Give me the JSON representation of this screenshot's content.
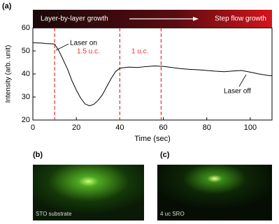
{
  "figure_label": "(a)",
  "chart_data": {
    "type": "line",
    "banner": [
      "Layer-by-layer growth",
      "Step flow growth"
    ],
    "xlabel": "Time (sec)",
    "ylabel": "Intensity (arb. unit)",
    "x": [
      0,
      2,
      4,
      6,
      8,
      10,
      12,
      14,
      16,
      18,
      20,
      22,
      24,
      26,
      28,
      30,
      32,
      34,
      36,
      38,
      40,
      44,
      48,
      52,
      56,
      60,
      64,
      68,
      72,
      76,
      80,
      84,
      88,
      92,
      96,
      100,
      104,
      108,
      110
    ],
    "series": [
      {
        "color": "#000000",
        "values": [
          53.6,
          53.5,
          53.4,
          53.2,
          53.1,
          53,
          50,
          46,
          42,
          37,
          33,
          29.5,
          27,
          26.2,
          26.8,
          28.5,
          31,
          34.5,
          38,
          41,
          42.5,
          43,
          42.8,
          43.2,
          43.5,
          43.3,
          42.8,
          42.3,
          42,
          41.8,
          41.5,
          41.2,
          41,
          41.3,
          41.5,
          40.8,
          40,
          39.4,
          39.2
        ]
      }
    ],
    "vlines": [
      10,
      40,
      59
    ],
    "vline_color": "#e8302a",
    "annotations": [
      "Laser on",
      "1.5 u.c.",
      "1 u.c.",
      "Laser off"
    ],
    "xlim": [
      0,
      110
    ],
    "xticks": [
      0,
      20,
      40,
      60,
      80,
      100
    ],
    "ylim": [
      20,
      60
    ],
    "yticks": [
      20,
      30,
      40,
      50,
      60
    ]
  },
  "panels": [
    {
      "label": "(b)",
      "caption": "STO substrate"
    },
    {
      "label": "(c)",
      "caption": "4 uc SRO"
    }
  ]
}
